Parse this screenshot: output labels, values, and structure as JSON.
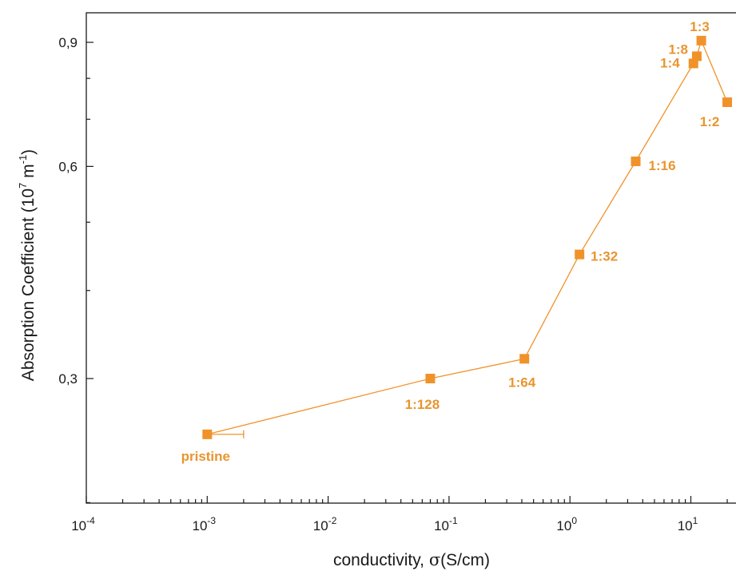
{
  "chart_data": {
    "type": "scatter",
    "x_scale": "log",
    "y_scale": "log",
    "xlim": [
      0.0001,
      20
    ],
    "ylim": [
      0.2,
      1
    ],
    "grid": false,
    "legend": "none",
    "xlabel": {
      "main": "conductivity, ",
      "symbol": "σ",
      "unit": "(S/cm)"
    },
    "ylabel": {
      "main": "Absorption Coefficient (10",
      "exp": "7",
      "mid": " m",
      "exp2": "-1",
      "end": ")"
    },
    "x_ticks": [
      {
        "value": 0.0001,
        "base": "10",
        "exp": "-4"
      },
      {
        "value": 0.001,
        "base": "10",
        "exp": "-3"
      },
      {
        "value": 0.01,
        "base": "10",
        "exp": "-2"
      },
      {
        "value": 0.1,
        "base": "10",
        "exp": "-1"
      },
      {
        "value": 1,
        "base": "10",
        "exp": "0"
      },
      {
        "value": 10,
        "base": "10",
        "exp": "1"
      }
    ],
    "y_ticks": [
      {
        "value": 0.3,
        "label": "0,3"
      },
      {
        "value": 0.6,
        "label": "0,6"
      },
      {
        "value": 0.9,
        "label": "0,9"
      }
    ],
    "colors": {
      "series": "#f0922a",
      "label": "#e8952f",
      "axis": "#1a1a1a"
    },
    "series": [
      {
        "points": [
          {
            "x": 0.001,
            "y": 0.25,
            "label": "pristine",
            "xerr_plus": 0.001
          },
          {
            "x": 0.07,
            "y": 0.3,
            "label": "1:128"
          },
          {
            "x": 0.42,
            "y": 0.32,
            "label": "1:64"
          },
          {
            "x": 1.2,
            "y": 0.45,
            "label": "1:32"
          },
          {
            "x": 3.5,
            "y": 0.61,
            "label": "1:16"
          },
          {
            "x": 10.5,
            "y": 0.84,
            "label": "1:4",
            "xerr_minus": 0.5,
            "xerr_plus": 0.5
          },
          {
            "x": 11.2,
            "y": 0.86,
            "label": "1:8",
            "xerr_minus": 0.6,
            "xerr_plus": 0.6
          },
          {
            "x": 12.2,
            "y": 0.905,
            "label": "1:3"
          },
          {
            "x": 20,
            "y": 0.74,
            "label": "1:2",
            "xerr_minus": 1.5
          }
        ]
      }
    ]
  }
}
